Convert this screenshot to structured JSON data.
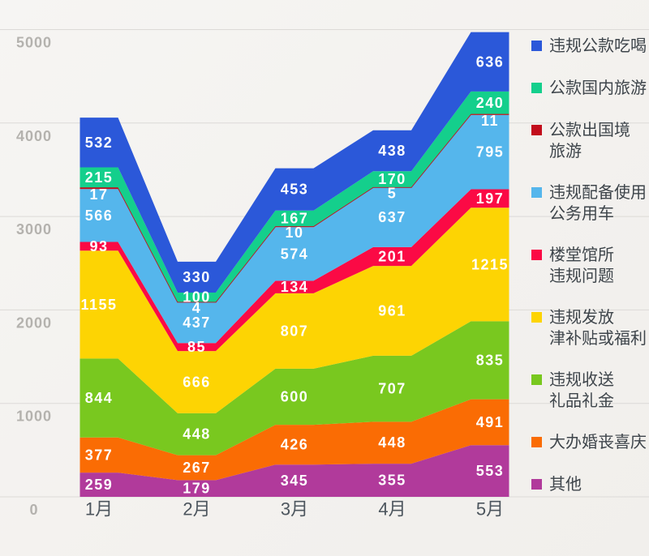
{
  "chart_data": {
    "type": "area",
    "stacked": true,
    "title": "",
    "xlabel": "",
    "ylabel": "",
    "x_categories": [
      "1月",
      "2月",
      "3月",
      "4月",
      "5月"
    ],
    "y_ticks": [
      0,
      1000,
      2000,
      3000,
      4000,
      5000
    ],
    "ylim": [
      0,
      5000
    ],
    "grid": true,
    "legend_position": "right",
    "series": [
      {
        "id": "public-funds-dining",
        "name": "违规公款吃喝",
        "legend_lines": [
          "违规公款吃喝"
        ],
        "color": "#2b58d9",
        "values": [
          532,
          330,
          453,
          438,
          636
        ]
      },
      {
        "id": "domestic-travel",
        "name": "公款国内旅游",
        "legend_lines": [
          "公款国内旅游"
        ],
        "color": "#14cf8c",
        "values": [
          215,
          100,
          167,
          170,
          240
        ]
      },
      {
        "id": "abroad-travel",
        "name": "公款出国境旅游",
        "legend_lines": [
          "公款出国境",
          "旅游"
        ],
        "color": "#c20d1c",
        "values": [
          17,
          4,
          10,
          5,
          11
        ],
        "thin": true
      },
      {
        "id": "official-cars",
        "name": "违规配备使用公务用车",
        "legend_lines": [
          "违规配备使用",
          "公务用车"
        ],
        "color": "#55b6ec",
        "values": [
          566,
          437,
          574,
          637,
          795
        ]
      },
      {
        "id": "official-buildings",
        "name": "楼堂馆所违规问题",
        "legend_lines": [
          "楼堂馆所",
          "违规问题"
        ],
        "color": "#fb0a45",
        "values": [
          93,
          85,
          134,
          201,
          197
        ]
      },
      {
        "id": "illegal-allowances",
        "name": "违规发放津补贴或福利",
        "legend_lines": [
          "违规发放",
          "津补贴或福利"
        ],
        "color": "#fdd403",
        "values": [
          1155,
          666,
          807,
          961,
          1215
        ]
      },
      {
        "id": "gifts-money",
        "name": "违规收送礼品礼金",
        "legend_lines": [
          "违规收送",
          "礼品礼金"
        ],
        "color": "#79c81f",
        "values": [
          844,
          448,
          600,
          707,
          835
        ]
      },
      {
        "id": "weddings-funerals",
        "name": "大办婚丧喜庆",
        "legend_lines": [
          "大办婚丧喜庆"
        ],
        "color": "#fa6c04",
        "values": [
          377,
          267,
          426,
          448,
          491
        ]
      },
      {
        "id": "other",
        "name": "其他",
        "legend_lines": [
          "其他"
        ],
        "color": "#b13a9b",
        "values": [
          259,
          179,
          345,
          355,
          553
        ]
      }
    ]
  },
  "style": {
    "grid_color": "#dcdad7",
    "y_tick_color": "#b4b2ae",
    "x_tick_color": "#4d565e",
    "value_label_color": "#ffffff",
    "legend_text_color": "#3e454b"
  }
}
